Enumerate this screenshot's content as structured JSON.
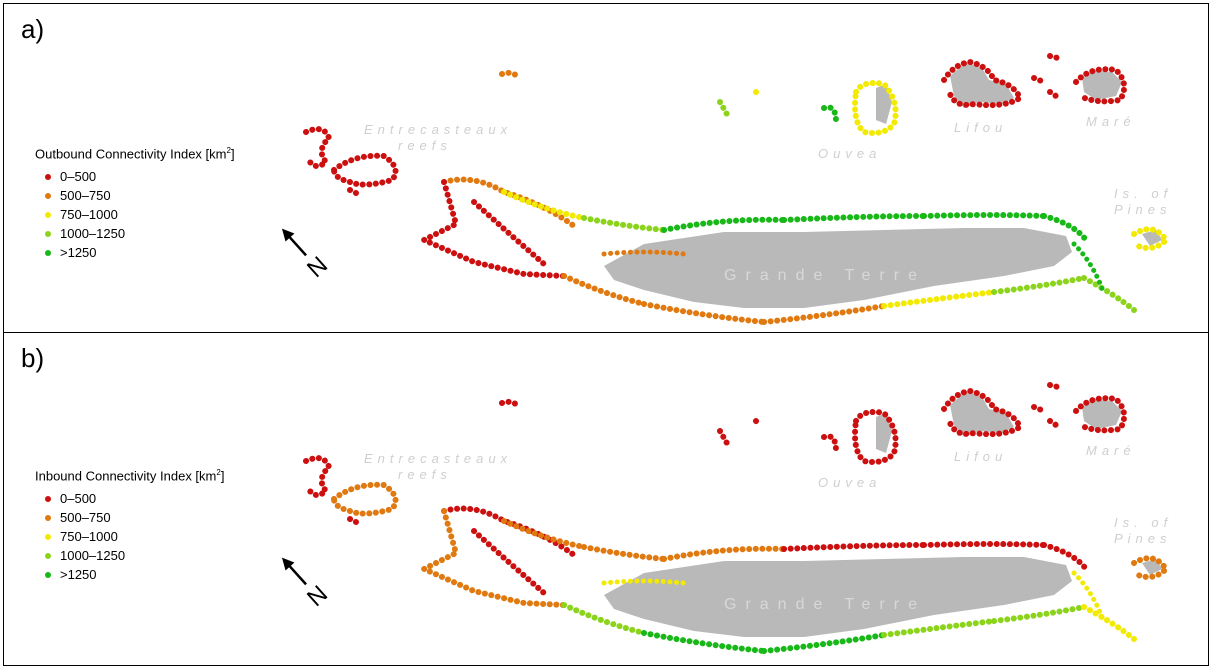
{
  "panels": [
    {
      "id": "a",
      "letter": "a)",
      "legend_title": "Outbound Connectivity Index [km",
      "legend_title_sup": "2",
      "legend_title_end": "]",
      "coloring": "outbound"
    },
    {
      "id": "b",
      "letter": "b)",
      "legend_title": "Inbound Connectivity Index [km",
      "legend_title_sup": "2",
      "legend_title_end": "]",
      "coloring": "inbound"
    }
  ],
  "legend_classes": [
    {
      "label": "0–500",
      "color": "#cc1010"
    },
    {
      "label": "500–750",
      "color": "#e07a10"
    },
    {
      "label": "750–1000",
      "color": "#f2ea00"
    },
    {
      "label": "1000–1250",
      "color": "#8cd41c"
    },
    {
      "label": ">1250",
      "color": "#18b818"
    }
  ],
  "places": {
    "entrecasteaux_1": "Entrecasteaux",
    "entrecasteaux_2": "reefs",
    "ouvea": "Ouvea",
    "lifou": "Lifou",
    "mare": "Maré",
    "pines_1": "Is. of",
    "pines_2": "Pines",
    "grande_terre": "Grande Terre"
  },
  "north_label": "N",
  "land_color": "#b9b9b9"
}
